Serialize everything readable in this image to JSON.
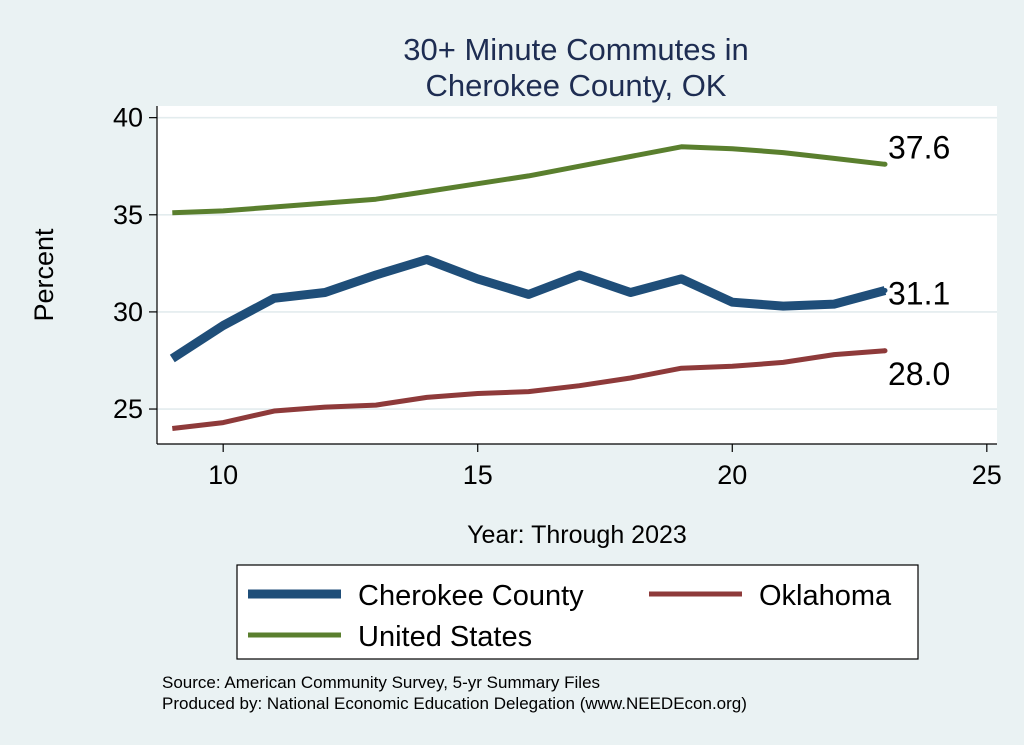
{
  "chart_data": {
    "type": "line",
    "title_lines": [
      "30+ Minute Commutes in",
      "Cherokee County, OK"
    ],
    "xlabel": "Year: Through 2023",
    "ylabel": "Percent",
    "xlim": [
      8.7,
      25.2
    ],
    "ylim": [
      23.2,
      40.6
    ],
    "xticks": [
      10,
      15,
      20,
      25
    ],
    "yticks": [
      25,
      30,
      35,
      40
    ],
    "grid": true,
    "legend_position": "bottom",
    "series": [
      {
        "name": "Cherokee County",
        "color": "#1f4e79",
        "width": 9,
        "x": [
          9,
          10,
          11,
          12,
          13,
          14,
          15,
          16,
          17,
          18,
          19,
          20,
          21,
          22,
          23
        ],
        "values": [
          27.6,
          29.3,
          30.7,
          31.0,
          31.9,
          32.7,
          31.7,
          30.9,
          31.9,
          31.0,
          31.7,
          30.5,
          30.3,
          30.4,
          31.1
        ],
        "end_label": "31.1"
      },
      {
        "name": "Oklahoma",
        "color": "#8e3a3a",
        "width": 5,
        "x": [
          9,
          10,
          11,
          12,
          13,
          14,
          15,
          16,
          17,
          18,
          19,
          20,
          21,
          22,
          23
        ],
        "values": [
          24.0,
          24.3,
          24.9,
          25.1,
          25.2,
          25.6,
          25.8,
          25.9,
          26.2,
          26.6,
          27.1,
          27.2,
          27.4,
          27.8,
          28.0
        ],
        "end_label": "28.0"
      },
      {
        "name": "United States",
        "color": "#5a7f2e",
        "width": 5,
        "x": [
          9,
          10,
          11,
          12,
          13,
          14,
          15,
          16,
          17,
          18,
          19,
          20,
          21,
          22,
          23
        ],
        "values": [
          35.1,
          35.2,
          35.4,
          35.6,
          35.8,
          36.2,
          36.6,
          37.0,
          37.5,
          38.0,
          38.5,
          38.4,
          38.2,
          37.9,
          37.6
        ],
        "end_label": "37.6"
      }
    ],
    "legend_order": [
      "Cherokee County",
      "Oklahoma",
      "United States"
    ],
    "source_lines": [
      "Source: American Community Survey, 5-yr Summary Files",
      "Produced by: National Economic Education Delegation (www.NEEDEcon.org)"
    ]
  }
}
